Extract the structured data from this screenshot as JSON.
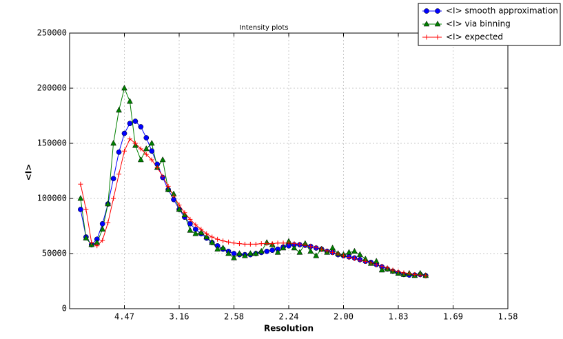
{
  "chart_data": {
    "type": "line",
    "title": "Intensity plots",
    "x_label": "Resolution",
    "y_label": "<I>",
    "xlim": [
      0,
      0.4
    ],
    "xticks": [
      {
        "value": 0.05,
        "label": "4.47"
      },
      {
        "value": 0.1,
        "label": "3.16"
      },
      {
        "value": 0.15,
        "label": "2.58"
      },
      {
        "value": 0.2,
        "label": "2.24"
      },
      {
        "value": 0.25,
        "label": "2.00"
      },
      {
        "value": 0.3,
        "label": "1.83"
      },
      {
        "value": 0.35,
        "label": "1.69"
      },
      {
        "value": 0.4,
        "label": "1.58"
      }
    ],
    "ylim": [
      0,
      250000
    ],
    "yticks": [
      0,
      50000,
      100000,
      150000,
      200000,
      250000
    ],
    "grid": true,
    "legend": "upper-right",
    "x": [
      0.01,
      0.015,
      0.02,
      0.025,
      0.03,
      0.035,
      0.04,
      0.045,
      0.05,
      0.055,
      0.06,
      0.065,
      0.07,
      0.075,
      0.08,
      0.085,
      0.09,
      0.095,
      0.1,
      0.105,
      0.11,
      0.115,
      0.12,
      0.125,
      0.13,
      0.135,
      0.14,
      0.145,
      0.15,
      0.155,
      0.16,
      0.165,
      0.17,
      0.175,
      0.18,
      0.185,
      0.19,
      0.195,
      0.2,
      0.205,
      0.21,
      0.215,
      0.22,
      0.225,
      0.23,
      0.235,
      0.24,
      0.245,
      0.25,
      0.255,
      0.26,
      0.265,
      0.27,
      0.275,
      0.28,
      0.285,
      0.29,
      0.295,
      0.3,
      0.305,
      0.31,
      0.315,
      0.32,
      0.325
    ],
    "series": [
      {
        "name": "<I> smooth approximation",
        "color": "#0000ff",
        "marker": "circle",
        "values": [
          90000,
          65000,
          58000,
          63000,
          77000,
          95000,
          118000,
          142000,
          159000,
          168000,
          170000,
          165000,
          155000,
          143000,
          131000,
          119000,
          108000,
          99000,
          90000,
          83000,
          77000,
          72000,
          68000,
          64000,
          60000,
          57000,
          54000,
          52000,
          50000,
          49000,
          49000,
          49000,
          50000,
          51000,
          52000,
          53000,
          54000,
          56000,
          57000,
          58000,
          58000,
          57500,
          56500,
          55000,
          54000,
          52000,
          51000,
          49000,
          48000,
          47000,
          46000,
          44500,
          43000,
          42000,
          40000,
          38000,
          36000,
          34000,
          32500,
          31000,
          30500,
          30500,
          31000,
          30000
        ]
      },
      {
        "name": "<I> via binning",
        "color": "#008000",
        "marker": "triangle",
        "values": [
          100000,
          64000,
          58000,
          60000,
          72000,
          95000,
          150000,
          180000,
          200000,
          188000,
          148000,
          135000,
          145000,
          150000,
          128000,
          135000,
          108000,
          104000,
          90000,
          85000,
          71000,
          68000,
          69000,
          65000,
          60000,
          54000,
          55000,
          50000,
          46000,
          50000,
          48000,
          50000,
          50000,
          52000,
          60000,
          58000,
          51000,
          55000,
          61000,
          55000,
          51000,
          59000,
          52000,
          48000,
          54000,
          51000,
          55000,
          50000,
          49000,
          51000,
          52000,
          49000,
          45000,
          41000,
          43000,
          35000,
          36000,
          34000,
          32000,
          31000,
          32000,
          30000,
          32000,
          30000
        ]
      },
      {
        "name": "<I> expected",
        "color": "#ff0000",
        "marker": "plus",
        "values": [
          113000,
          90000,
          60000,
          57000,
          62000,
          78000,
          100000,
          122000,
          143000,
          154000,
          150000,
          145000,
          140000,
          135000,
          128000,
          120000,
          111000,
          102000,
          94000,
          87000,
          81000,
          76000,
          72000,
          68000,
          65000,
          63000,
          61500,
          60500,
          59500,
          59000,
          58500,
          58500,
          58500,
          59000,
          59000,
          59000,
          59500,
          59500,
          59500,
          59000,
          58500,
          57500,
          56500,
          55500,
          54000,
          52500,
          51000,
          49500,
          48000,
          46500,
          45500,
          44000,
          43000,
          41500,
          40000,
          38500,
          37000,
          35000,
          33500,
          32500,
          32000,
          31000,
          30500,
          30000
        ]
      }
    ]
  }
}
